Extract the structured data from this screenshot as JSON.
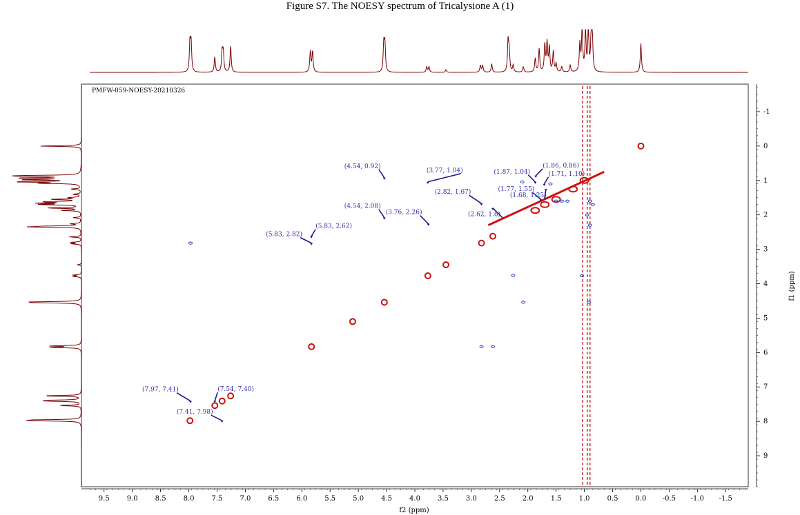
{
  "title": "Figure S7. The NOESY spectrum of Tricalysione A (1)",
  "chart_data": {
    "type": "scatter",
    "experiment_label": "PMFW-059-NOESY-20210326",
    "xlabel": "f2 (ppm)",
    "ylabel": "f1 (ppm)",
    "xlim": [
      9.9,
      -1.9
    ],
    "ylim": [
      -1.8,
      9.9
    ],
    "x_ticks": [
      "9.5",
      "9.0",
      "8.5",
      "8.0",
      "7.5",
      "7.0",
      "6.5",
      "6.0",
      "5.5",
      "5.0",
      "4.5",
      "4.0",
      "3.5",
      "3.0",
      "2.5",
      "2.0",
      "1.5",
      "1.0",
      "0.5",
      "0.0",
      "-0.5",
      "-1.0",
      "-1.5"
    ],
    "x_tick_values": [
      9.5,
      9.0,
      8.5,
      8.0,
      7.5,
      7.0,
      6.5,
      6.0,
      5.5,
      5.0,
      4.5,
      4.0,
      3.5,
      3.0,
      2.5,
      2.0,
      1.5,
      1.0,
      0.5,
      0.0,
      -0.5,
      -1.0,
      -1.5
    ],
    "y_ticks": [
      "-1",
      "0",
      "1",
      "2",
      "3",
      "4",
      "5",
      "6",
      "7",
      "8",
      "9"
    ],
    "y_tick_values": [
      -1,
      0,
      1,
      2,
      3,
      4,
      5,
      6,
      7,
      8,
      9
    ],
    "peak_annotations": [
      {
        "label": "(4.54, 0.92)",
        "x": 4.54,
        "y": 0.92
      },
      {
        "label": "(3.77, 1.04)",
        "x": 3.77,
        "y": 1.04
      },
      {
        "label": "(1.87, 1.04)",
        "x": 1.87,
        "y": 1.04
      },
      {
        "label": "(1.86, 0.86)",
        "x": 1.86,
        "y": 0.86
      },
      {
        "label": "(2.82, 1.67)",
        "x": 2.82,
        "y": 1.67
      },
      {
        "label": "(1.77, 1.55)",
        "x": 1.77,
        "y": 1.55
      },
      {
        "label": "(1.71, 1.10)",
        "x": 1.71,
        "y": 1.1
      },
      {
        "label": "(1.68, 1.25)",
        "x": 1.68,
        "y": 1.25
      },
      {
        "label": "(4.54, 2.08)",
        "x": 4.54,
        "y": 2.08
      },
      {
        "label": "(3.76, 2.26)",
        "x": 3.76,
        "y": 2.26
      },
      {
        "label": "(2.62, 1.8)",
        "x": 2.62,
        "y": 1.8
      },
      {
        "label": "(5.83, 2.62)",
        "x": 5.83,
        "y": 2.62
      },
      {
        "label": "(5.83, 2.82)",
        "x": 5.83,
        "y": 2.82
      },
      {
        "label": "(7.97, 7.41)",
        "x": 7.97,
        "y": 7.41
      },
      {
        "label": "(7.54, 7.40)",
        "x": 7.54,
        "y": 7.4
      },
      {
        "label": "(7.41, 7.98)",
        "x": 7.41,
        "y": 7.98
      }
    ],
    "diagonal_peaks": [
      {
        "x": 7.98,
        "y": 7.98
      },
      {
        "x": 7.54,
        "y": 7.54
      },
      {
        "x": 7.41,
        "y": 7.41
      },
      {
        "x": 7.26,
        "y": 7.26
      },
      {
        "x": 5.83,
        "y": 5.83
      },
      {
        "x": 4.54,
        "y": 4.54
      },
      {
        "x": 3.77,
        "y": 3.77
      },
      {
        "x": 2.82,
        "y": 2.82
      },
      {
        "x": 2.62,
        "y": 2.62
      },
      {
        "x": 3.45,
        "y": 3.45
      },
      {
        "x": 5.1,
        "y": 5.1
      },
      {
        "x": 0.0,
        "y": 0.0
      }
    ],
    "cross_peaks_blue": [
      {
        "x": 7.97,
        "y": 2.82
      },
      {
        "x": 2.26,
        "y": 3.76
      },
      {
        "x": 2.08,
        "y": 4.54
      },
      {
        "x": 2.82,
        "y": 5.83
      },
      {
        "x": 2.62,
        "y": 5.83
      },
      {
        "x": 1.5,
        "y": 1.6
      },
      {
        "x": 1.4,
        "y": 1.6
      },
      {
        "x": 2.1,
        "y": 1.04
      },
      {
        "x": 1.6,
        "y": 1.1
      },
      {
        "x": 1.3,
        "y": 1.6
      },
      {
        "x": 0.9,
        "y": 1.6
      },
      {
        "x": 0.85,
        "y": 1.7
      },
      {
        "x": 0.92,
        "y": 4.54
      },
      {
        "x": 1.04,
        "y": 3.77
      },
      {
        "x": 0.95,
        "y": 2.0
      },
      {
        "x": 0.9,
        "y": 2.3
      }
    ],
    "colors": {
      "positive": "#cc1111",
      "negative": "#2233cc",
      "projection": "#7a0000",
      "annotation": "#1a1a8c"
    }
  }
}
